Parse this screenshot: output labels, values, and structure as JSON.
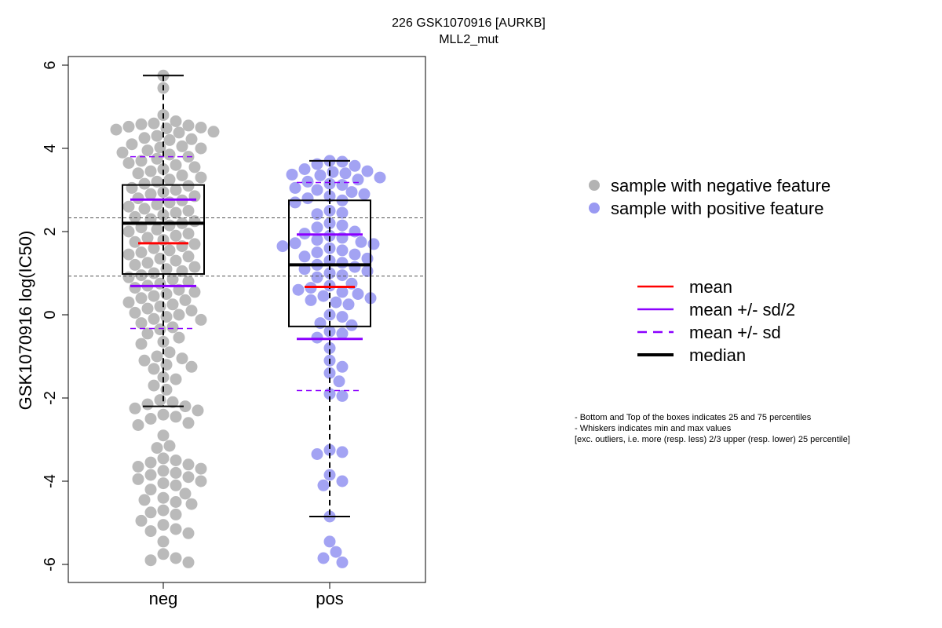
{
  "chart_data": {
    "type": "box-beeswarm",
    "title": "226 GSK1070916 [AURKB]",
    "subtitle": "MLL2_mut",
    "ylabel": "GSK1070916 log(IC50)",
    "xlabel": "",
    "categories": [
      "neg",
      "pos"
    ],
    "ylim": [
      -6.4,
      6.3
    ],
    "yticks": [
      -6,
      -4,
      -2,
      0,
      2,
      4,
      6
    ],
    "hlines": [
      2.33,
      0.93
    ],
    "colors": {
      "neg": "#b3b3b3",
      "pos": "#9999f2",
      "mean": "#ff0000",
      "sd": "#8b00ff",
      "median": "#000000"
    },
    "groups": [
      {
        "name": "neg",
        "q1": 0.98,
        "median": 2.2,
        "q3": 3.12,
        "whisker_low": -2.2,
        "whisker_high": 5.75,
        "mean": 1.72,
        "mean_plus_half_sd": 2.77,
        "mean_minus_half_sd": 0.69,
        "mean_plus_sd": 3.8,
        "mean_minus_sd": -0.33,
        "points": [
          5.75,
          5.45,
          4.8,
          4.65,
          4.6,
          4.58,
          4.55,
          4.52,
          4.5,
          4.48,
          4.45,
          4.4,
          4.38,
          4.3,
          4.25,
          4.22,
          4.2,
          4.1,
          4.05,
          4.02,
          4.0,
          3.95,
          3.9,
          3.85,
          3.8,
          3.75,
          3.7,
          3.65,
          3.6,
          3.55,
          3.5,
          3.45,
          3.4,
          3.35,
          3.3,
          3.25,
          3.2,
          3.15,
          3.1,
          3.05,
          3.0,
          2.95,
          2.9,
          2.85,
          2.8,
          2.75,
          2.7,
          2.65,
          2.6,
          2.55,
          2.5,
          2.45,
          2.4,
          2.35,
          2.3,
          2.25,
          2.2,
          2.15,
          2.1,
          2.05,
          2.0,
          1.95,
          1.9,
          1.85,
          1.8,
          1.75,
          1.7,
          1.65,
          1.6,
          1.55,
          1.5,
          1.45,
          1.4,
          1.35,
          1.3,
          1.25,
          1.2,
          1.15,
          1.1,
          1.05,
          1.0,
          0.95,
          0.9,
          0.85,
          0.8,
          0.75,
          0.7,
          0.65,
          0.6,
          0.55,
          0.5,
          0.45,
          0.4,
          0.35,
          0.3,
          0.25,
          0.2,
          0.15,
          0.1,
          0.05,
          0.0,
          -0.05,
          -0.1,
          -0.12,
          -0.2,
          -0.3,
          -0.35,
          -0.45,
          -0.55,
          -0.65,
          -0.7,
          -0.9,
          -1.0,
          -1.05,
          -1.1,
          -1.2,
          -1.25,
          -1.3,
          -1.5,
          -1.55,
          -1.7,
          -1.8,
          -2.05,
          -2.1,
          -2.15,
          -2.2,
          -2.25,
          -2.3,
          -2.4,
          -2.45,
          -2.5,
          -2.6,
          -2.65,
          -2.9,
          -3.15,
          -3.2,
          -3.45,
          -3.5,
          -3.55,
          -3.6,
          -3.65,
          -3.7,
          -3.75,
          -3.8,
          -3.85,
          -3.9,
          -3.95,
          -4.0,
          -4.05,
          -4.1,
          -4.2,
          -4.3,
          -4.4,
          -4.45,
          -4.5,
          -4.55,
          -4.7,
          -4.75,
          -4.8,
          -4.95,
          -5.05,
          -5.15,
          -5.2,
          -5.25,
          -5.45,
          -5.75,
          -5.85,
          -5.95,
          -5.9
        ]
      },
      {
        "name": "pos",
        "q1": -0.28,
        "median": 1.2,
        "q3": 2.75,
        "whisker_low": -4.85,
        "whisker_high": 3.7,
        "mean": 0.67,
        "mean_plus_half_sd": 1.93,
        "mean_minus_half_sd": -0.58,
        "mean_plus_sd": 3.18,
        "mean_minus_sd": -1.82,
        "points": [
          3.7,
          3.68,
          3.62,
          3.58,
          3.5,
          3.45,
          3.43,
          3.4,
          3.37,
          3.35,
          3.3,
          3.25,
          3.2,
          3.15,
          3.12,
          3.05,
          3.0,
          2.95,
          2.9,
          2.85,
          2.8,
          2.75,
          2.7,
          2.5,
          2.45,
          2.42,
          2.2,
          2.15,
          2.1,
          2.0,
          1.95,
          1.9,
          1.85,
          1.8,
          1.75,
          1.72,
          1.7,
          1.65,
          1.6,
          1.55,
          1.5,
          1.45,
          1.4,
          1.35,
          1.3,
          1.25,
          1.2,
          1.15,
          1.1,
          1.05,
          1.0,
          0.95,
          0.9,
          0.75,
          0.7,
          0.65,
          0.6,
          0.55,
          0.5,
          0.45,
          0.4,
          0.35,
          0.3,
          0.25,
          0.0,
          -0.05,
          -0.2,
          -0.25,
          -0.4,
          -0.45,
          -0.55,
          -0.8,
          -1.1,
          -1.25,
          -1.4,
          -1.6,
          -1.9,
          -1.95,
          -3.25,
          -3.3,
          -3.35,
          -3.85,
          -4.0,
          -4.1,
          -4.85,
          -5.45,
          -5.7,
          -5.85,
          -5.95
        ]
      }
    ],
    "legend_points": [
      {
        "label": "sample with negative feature",
        "color": "#b3b3b3"
      },
      {
        "label": "sample with positive feature",
        "color": "#9999f2"
      }
    ],
    "legend_lines": [
      {
        "label": "mean",
        "color": "#ff0000",
        "style": "solid",
        "weight": "normal"
      },
      {
        "label": "mean +/- sd/2",
        "color": "#8b00ff",
        "style": "solid",
        "weight": "normal"
      },
      {
        "label": "mean +/- sd",
        "color": "#8b00ff",
        "style": "dashed",
        "weight": "normal"
      },
      {
        "label": "median",
        "color": "#000000",
        "style": "solid",
        "weight": "bold"
      }
    ]
  },
  "notes": [
    "- Bottom and Top of the boxes indicates 25 and 75 percentiles",
    "- Whiskers indicates min and max values",
    "[exc. outliers, i.e. more (resp. less) 2/3 upper (resp. lower) 25 percentile]"
  ]
}
